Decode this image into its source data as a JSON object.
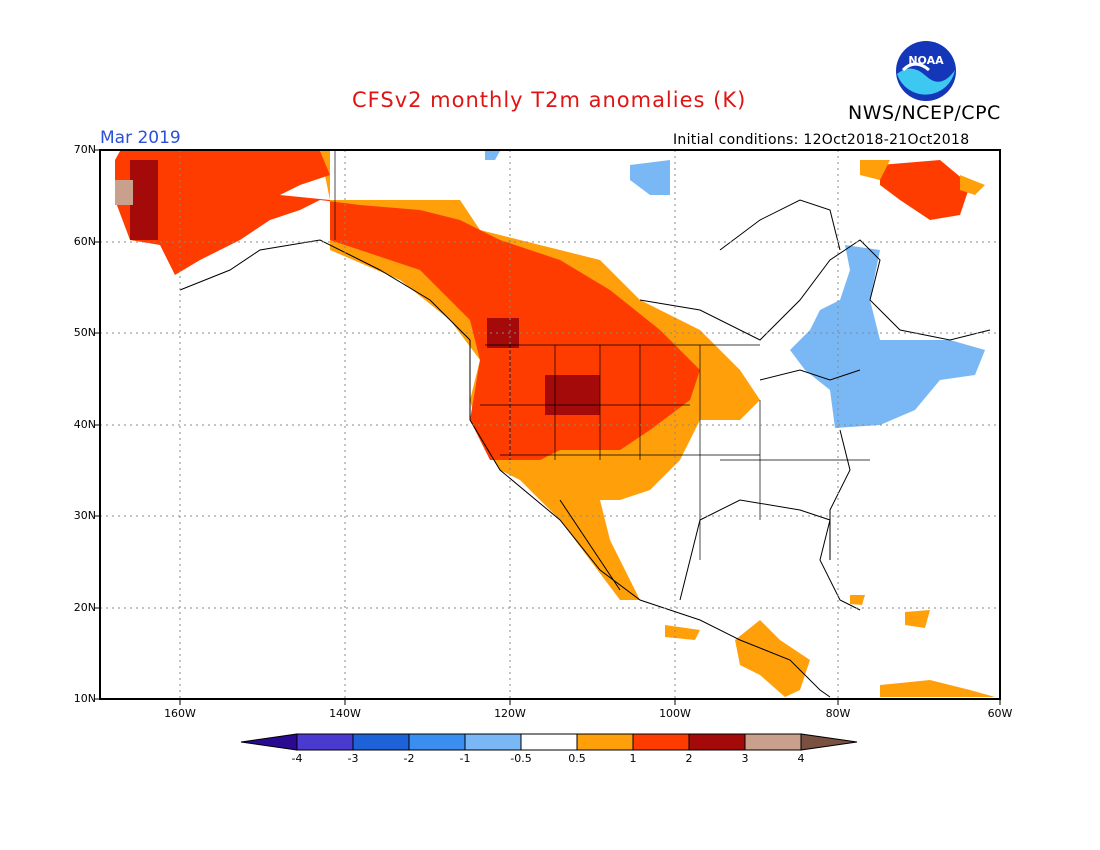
{
  "header": {
    "title": "CFSv2 monthly T2m anomalies (K)",
    "agency": "NWS/NCEP/CPC",
    "valid_month": "Mar 2019",
    "initial_conditions": "Initial conditions: 12Oct2018-21Oct2018",
    "logo_text": "NOAA"
  },
  "map": {
    "lat_labels": [
      "70N",
      "60N",
      "50N",
      "40N",
      "30N",
      "20N",
      "10N"
    ],
    "lon_labels": [
      "160W",
      "140W",
      "120W",
      "100W",
      "80W",
      "60W"
    ]
  },
  "colorbar": {
    "ticks": [
      "-4",
      "-3",
      "-2",
      "-1",
      "-0.5",
      "0.5",
      "1",
      "2",
      "3",
      "4"
    ],
    "colors": [
      "#2a0a90",
      "#4a3ad0",
      "#1e62d8",
      "#3a8ef0",
      "#7ab8f5",
      "#ffffff",
      "#ffa00a",
      "#ff3c00",
      "#a50a0a",
      "#c8a08c",
      "#7a5040"
    ]
  }
}
